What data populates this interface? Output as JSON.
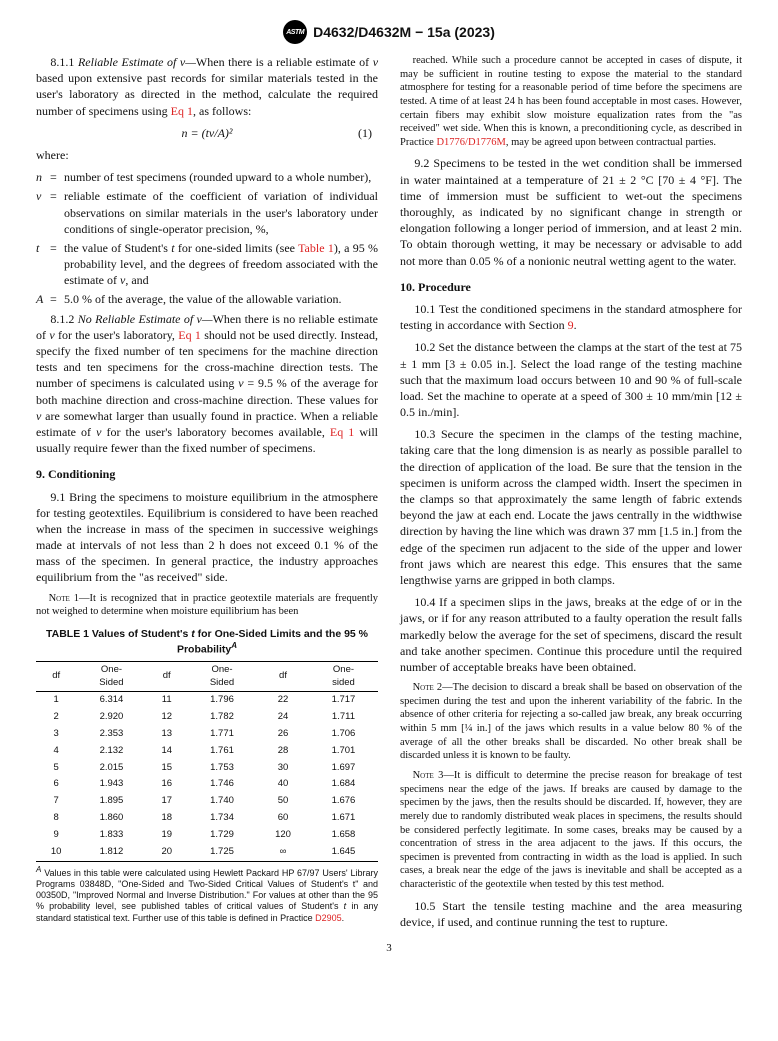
{
  "header": {
    "doc_id": "D4632/D4632M − 15a (2023)"
  },
  "col1": {
    "p811_lead": "8.1.1 ",
    "p811_emph": "Reliable Estimate of v—",
    "p811_body": "When there is a reliable estimate of ",
    "p811_body2": " based upon extensive past records for similar materials tested in the user's laboratory as directed in the method, calculate the required number of specimens using ",
    "p811_link": "Eq 1",
    "p811_tail": ", as follows:",
    "eq1": "n = (tv/A)²",
    "eq1_num": "(1)",
    "where": "where:",
    "def_n_sym": "n",
    "def_n": "number of test specimens (rounded upward to a whole number),",
    "def_v_sym": "v",
    "def_v": "reliable estimate of the coefficient of variation of individual observations on similar materials in the user's laboratory under conditions of single-operator precision, %,",
    "def_t_sym": "t",
    "def_t_a": "the value of Student's ",
    "def_t_b": " for one-sided limits (see ",
    "def_t_link": "Table 1",
    "def_t_c": "), a 95 % probability level, and the degrees of freedom associated with the estimate of ",
    "def_t_d": ", and",
    "def_A_sym": "A",
    "def_A": "5.0 % of the average, the value of the allowable variation.",
    "p812_lead": "8.1.2 ",
    "p812_emph": "No Reliable Estimate of v—",
    "p812_a": "When there is no reliable estimate of ",
    "p812_b": " for the user's laboratory, ",
    "p812_link1": "Eq 1",
    "p812_c": " should not be used directly. Instead, specify the fixed number of ten specimens for the machine direction tests and ten specimens for the cross-machine direction tests. The number of specimens is calculated using ",
    "p812_d": " = 9.5 % of the average for both machine direction and cross-machine direction. These values for ",
    "p812_e": " are somewhat larger than usually found in practice. When a reliable estimate of ",
    "p812_f": " for the user's laboratory becomes available, ",
    "p812_link2": "Eq 1",
    "p812_g": " will usually require fewer than the fixed number of specimens.",
    "sec9": "9.  Conditioning",
    "p91": "9.1 Bring the specimens to moisture equilibrium in the atmosphere for testing geotextiles. Equilibrium is considered to have been reached when the increase in mass of the specimen in successive weighings made at intervals of not less than 2 h does not exceed 0.1 % of the mass of the specimen. In general practice, the industry approaches equilibrium from the \"as received\" side.",
    "note1_label": "Note 1—",
    "note1": "It is recognized that in practice geotextile materials are frequently not weighed to determine when moisture equilibrium has been",
    "table_title_a": "TABLE 1 Values of Student's ",
    "table_title_b": " for One-Sided Limits and the 95 % Probability",
    "table_sup": "A",
    "th_df": "df",
    "th_os": "One-\nSided",
    "th_os3": "One-\nsided",
    "rows": [
      [
        "1",
        "6.314",
        "11",
        "1.796",
        "22",
        "1.717"
      ],
      [
        "2",
        "2.920",
        "12",
        "1.782",
        "24",
        "1.711"
      ],
      [
        "3",
        "2.353",
        "13",
        "1.771",
        "26",
        "1.706"
      ],
      [
        "4",
        "2.132",
        "14",
        "1.761",
        "28",
        "1.701"
      ],
      [
        "5",
        "2.015",
        "15",
        "1.753",
        "30",
        "1.697"
      ],
      [
        "6",
        "1.943",
        "16",
        "1.746",
        "40",
        "1.684"
      ],
      [
        "7",
        "1.895",
        "17",
        "1.740",
        "50",
        "1.676"
      ],
      [
        "8",
        "1.860",
        "18",
        "1.734",
        "60",
        "1.671"
      ],
      [
        "9",
        "1.833",
        "19",
        "1.729",
        "120",
        "1.658"
      ],
      [
        "10",
        "1.812",
        "20",
        "1.725",
        "∞",
        "1.645"
      ]
    ],
    "tbl_foot_sup": "A",
    "tbl_foot_a": " Values in this table were calculated using Hewlett Packard HP 67/97 Users' Library Programs 03848D, \"One-Sided and Two-Sided Critical Values of Student's t\" and 00350D, \"Improved Normal and Inverse Distribution.\" For values at other than the 95 % probability level, see published tables of critical values of Student's ",
    "tbl_foot_b": " in any standard statistical text. Further use of this table is defined in Practice ",
    "tbl_foot_link": "D2905",
    "tbl_foot_c": "."
  },
  "col2": {
    "p_cont_a": "reached. While such a procedure cannot be accepted in cases of dispute, it may be sufficient in routine testing to expose the material to the standard atmosphere for testing for a reasonable period of time before the specimens are tested. A time of at least 24 h has been found acceptable in most cases. However, certain fibers may exhibit slow moisture equalization rates from the \"as received\" wet side. When this is known, a preconditioning cycle, as described in Practice ",
    "p_cont_link": "D1776/D1776M",
    "p_cont_b": ", may be agreed upon between contractual parties.",
    "p92": "9.2 Specimens to be tested in the wet condition shall be immersed in water maintained at a temperature of 21 ± 2 °C [70 ± 4 °F]. The time of immersion must be sufficient to wet-out the specimens thoroughly, as indicated by no significant change in strength or elongation following a longer period of immersion, and at least 2 min. To obtain thorough wetting, it may be necessary or advisable to add not more than 0.05 % of a nonionic neutral wetting agent to the water.",
    "sec10": "10.  Procedure",
    "p101_a": "10.1 Test the conditioned specimens in the standard atmosphere for testing in accordance with Section ",
    "p101_link": "9",
    "p101_b": ".",
    "p102": "10.2 Set the distance between the clamps at the start of the test at 75 ± 1 mm [3 ± 0.05 in.]. Select the load range of the testing machine such that the maximum load occurs between 10 and 90 % of full-scale load. Set the machine to operate at a speed of 300 ± 10 mm/min [12 ± 0.5 in./min].",
    "p103": "10.3 Secure the specimen in the clamps of the testing machine, taking care that the long dimension is as nearly as possible parallel to the direction of application of the load. Be sure that the tension in the specimen is uniform across the clamped width. Insert the specimen in the clamps so that approximately the same length of fabric extends beyond the jaw at each end. Locate the jaws centrally in the widthwise direction by having the line which was drawn 37 mm [1.5 in.] from the edge of the specimen run adjacent to the side of the upper and lower front jaws which are nearest this edge. This ensures that the same lengthwise yarns are gripped in both clamps.",
    "p104": "10.4 If a specimen slips in the jaws, breaks at the edge of or in the jaws, or if for any reason attributed to a faulty operation the result falls markedly below the average for the set of specimens, discard the result and take another specimen. Continue this procedure until the required number of acceptable breaks have been obtained.",
    "note2_label": "Note 2—",
    "note2": "The decision to discard a break shall be based on observation of the specimen during the test and upon the inherent variability of the fabric. In the absence of other criteria for rejecting a so-called jaw break, any break occurring within 5 mm [¼ in.] of the jaws which results in a value below 80 % of the average of all the other breaks shall be discarded. No other break shall be discarded unless it is known to be faulty.",
    "note3_label": "Note 3—",
    "note3": "It is difficult to determine the precise reason for breakage of test specimens near the edge of the jaws. If breaks are caused by damage to the specimen by the jaws, then the results should be discarded. If, however, they are merely due to randomly distributed weak places in specimens, the results should be considered perfectly legitimate. In some cases, breaks may be caused by a concentration of stress in the area adjacent to the jaws. If this occurs, the specimen is prevented from contracting in width as the load is applied. In such cases, a break near the edge of the jaws is inevitable and shall be accepted as a characteristic of the geotextile when tested by this test method.",
    "p105": "10.5 Start the tensile testing machine and the area measuring device, if used, and continue running the test to rupture."
  },
  "pagenum": "3"
}
